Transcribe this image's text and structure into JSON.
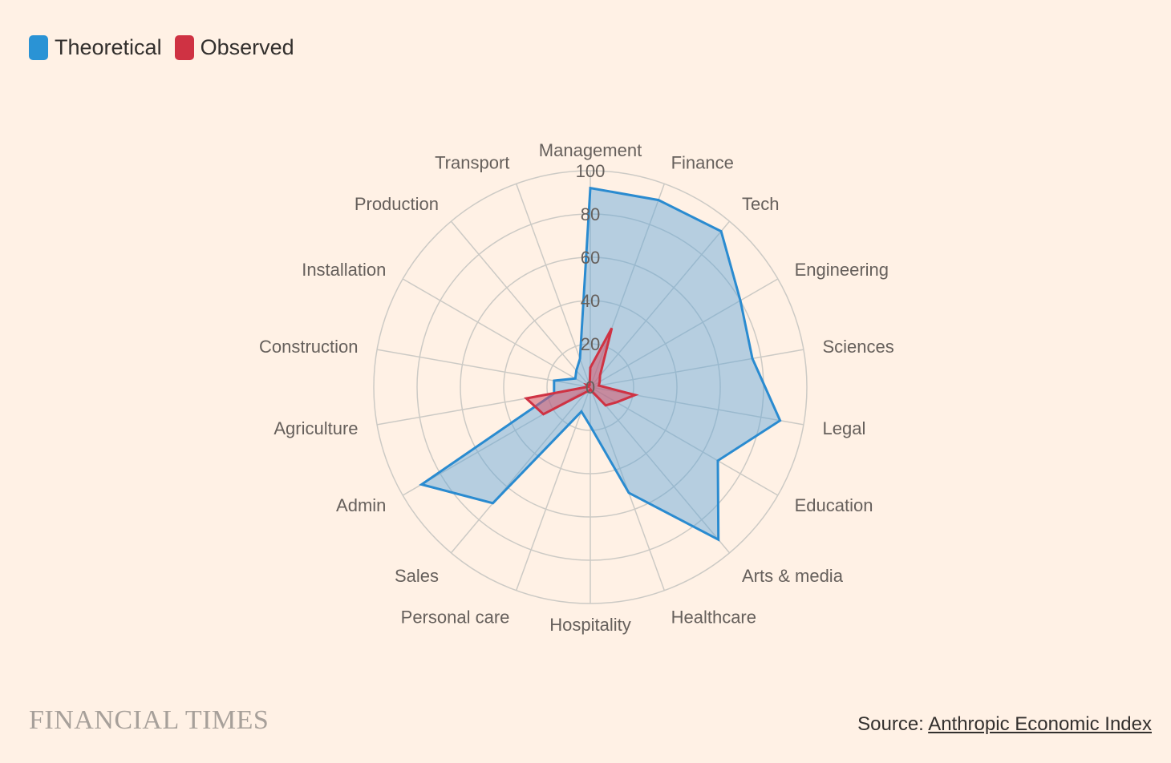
{
  "legend": {
    "items": [
      {
        "label": "Theoretical",
        "color": "#2a93d5"
      },
      {
        "label": "Observed",
        "color": "#cf3243"
      }
    ]
  },
  "footer": {
    "logo_text": "FINANCIAL TIMES",
    "source_prefix": "Source: ",
    "source_link": "Anthropic Economic Index"
  },
  "colors": {
    "background": "#fff1e5",
    "grid": "#cccac5",
    "theoretical_stroke": "#2a8bd0",
    "theoretical_fill": "#5ea3d9",
    "observed_stroke": "#cf3243",
    "observed_fill": "#d4536a"
  },
  "chart_data": {
    "type": "radar",
    "title": "",
    "categories": [
      "Management",
      "Finance",
      "Tech",
      "Engineering",
      "Sciences",
      "Legal",
      "Education",
      "Arts & media",
      "Healthcare",
      "Hospitality",
      "Personal care",
      "Sales",
      "Admin",
      "Agriculture",
      "Construction",
      "Installation",
      "Production",
      "Transport"
    ],
    "series": [
      {
        "name": "Theoretical",
        "values": [
          92,
          92,
          94,
          80,
          76,
          89,
          68,
          92,
          52,
          18,
          12,
          70,
          90,
          17,
          17,
          8,
          10,
          14
        ]
      },
      {
        "name": "Observed",
        "values": [
          9,
          29,
          7,
          5,
          4,
          21,
          14,
          11,
          2,
          1,
          2,
          3,
          25,
          30,
          1,
          2,
          1,
          1
        ]
      }
    ],
    "rlim": [
      0,
      100
    ],
    "ticks": [
      "0",
      "20",
      "40",
      "60",
      "80",
      "100"
    ],
    "grid": true,
    "legend_position": "top-left"
  }
}
